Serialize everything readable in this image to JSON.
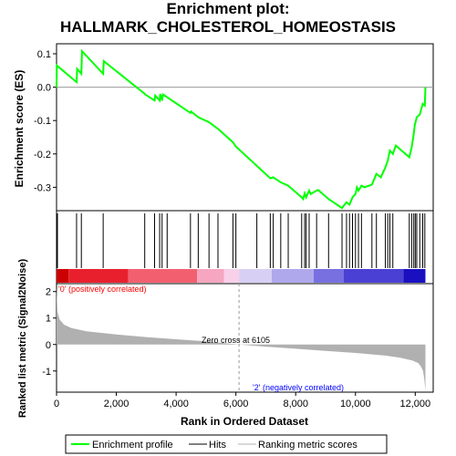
{
  "chart_data": {
    "type": "line",
    "title_line1": "Enrichment plot:",
    "title_line2": "HALLMARK_CHOLESTEROL_HOMEOSTASIS",
    "top_panel": {
      "ylabel": "Enrichment score (ES)",
      "ylim": [
        -0.37,
        0.13
      ],
      "yticks": [
        "0.1",
        "0.0",
        "-0.1",
        "-0.2",
        "-0.3"
      ],
      "ytick_values": [
        0.1,
        0.0,
        -0.1,
        -0.2,
        -0.3
      ],
      "series": [
        {
          "name": "Enrichment profile",
          "color": "#00ff00",
          "x": [
            0,
            10,
            670,
            690,
            830,
            850,
            1560,
            1580,
            2950,
            2970,
            3280,
            3300,
            3450,
            3470,
            3530,
            3560,
            3700,
            4480,
            4500,
            4740,
            5100,
            5400,
            5900,
            6000,
            7150,
            7250,
            7500,
            7750,
            8200,
            8250,
            8300,
            8350,
            8450,
            8500,
            8700,
            8750,
            9100,
            9550,
            9700,
            9800,
            9900,
            10000,
            10050,
            10100,
            10200,
            10300,
            10550,
            10700,
            10850,
            11000,
            11080,
            11150,
            11250,
            11350,
            11800,
            11880,
            11950,
            11980,
            12050,
            12150,
            12250,
            12320,
            12340
          ],
          "y": [
            0.0,
            0.065,
            0.015,
            0.055,
            0.04,
            0.108,
            0.04,
            0.078,
            -0.02,
            -0.022,
            -0.04,
            -0.025,
            -0.04,
            -0.02,
            -0.04,
            -0.022,
            -0.03,
            -0.077,
            -0.073,
            -0.09,
            -0.105,
            -0.125,
            -0.165,
            -0.178,
            -0.273,
            -0.27,
            -0.285,
            -0.295,
            -0.33,
            -0.335,
            -0.318,
            -0.33,
            -0.31,
            -0.32,
            -0.31,
            -0.308,
            -0.335,
            -0.362,
            -0.345,
            -0.352,
            -0.33,
            -0.32,
            -0.3,
            -0.31,
            -0.295,
            -0.3,
            -0.292,
            -0.26,
            -0.27,
            -0.24,
            -0.22,
            -0.19,
            -0.2,
            -0.175,
            -0.21,
            -0.18,
            -0.14,
            -0.115,
            -0.09,
            -0.082,
            -0.05,
            -0.055,
            0.0
          ]
        }
      ]
    },
    "hits": [
      30,
      670,
      830,
      1560,
      2950,
      3280,
      3450,
      3530,
      3700,
      4480,
      4740,
      5100,
      5400,
      5900,
      6000,
      6700,
      7150,
      7250,
      7500,
      7750,
      8200,
      8300,
      8350,
      8450,
      8700,
      9100,
      9550,
      9700,
      9800,
      9900,
      10000,
      10100,
      10200,
      10550,
      10700,
      11000,
      11080,
      11150,
      11250,
      11800,
      11880,
      11950,
      12000,
      12050,
      12150,
      12250,
      12320
    ],
    "bottom_panel": {
      "ylabel": "Ranked list metric (Signal2Noise)",
      "xlabel": "Rank in Ordered Dataset",
      "ylim": [
        -1.8,
        2.3
      ],
      "yticks": [
        "2",
        "1",
        "0",
        "-1"
      ],
      "ytick_values": [
        2,
        1,
        0,
        -1
      ],
      "xticks": [
        "0",
        "2,000",
        "4,000",
        "6,000",
        "8,000",
        "10,000",
        "12,000"
      ],
      "xtick_values": [
        0,
        2000,
        4000,
        6000,
        8000,
        10000,
        12000
      ],
      "xlim": [
        0,
        12600
      ],
      "zero_cross_label": "Zero cross at 6105",
      "zero_cross": 6105,
      "pos_label": "'0' (positively correlated)",
      "neg_label": "'2' (negatively correlated)",
      "metric_curve": {
        "x": [
          0,
          30,
          100,
          250,
          500,
          1000,
          2000,
          3000,
          4000,
          5000,
          6105,
          7000,
          8000,
          9000,
          10000,
          11000,
          11500,
          11900,
          12100,
          12200,
          12260,
          12300,
          12340
        ],
        "y": [
          2.2,
          1.25,
          0.95,
          0.75,
          0.62,
          0.5,
          0.38,
          0.28,
          0.2,
          0.12,
          0.0,
          -0.08,
          -0.16,
          -0.24,
          -0.32,
          -0.42,
          -0.5,
          -0.6,
          -0.7,
          -0.85,
          -1.0,
          -1.3,
          -1.75
        ]
      }
    },
    "legend": [
      "Enrichment profile",
      "Hits",
      "Ranking metric scores"
    ]
  }
}
